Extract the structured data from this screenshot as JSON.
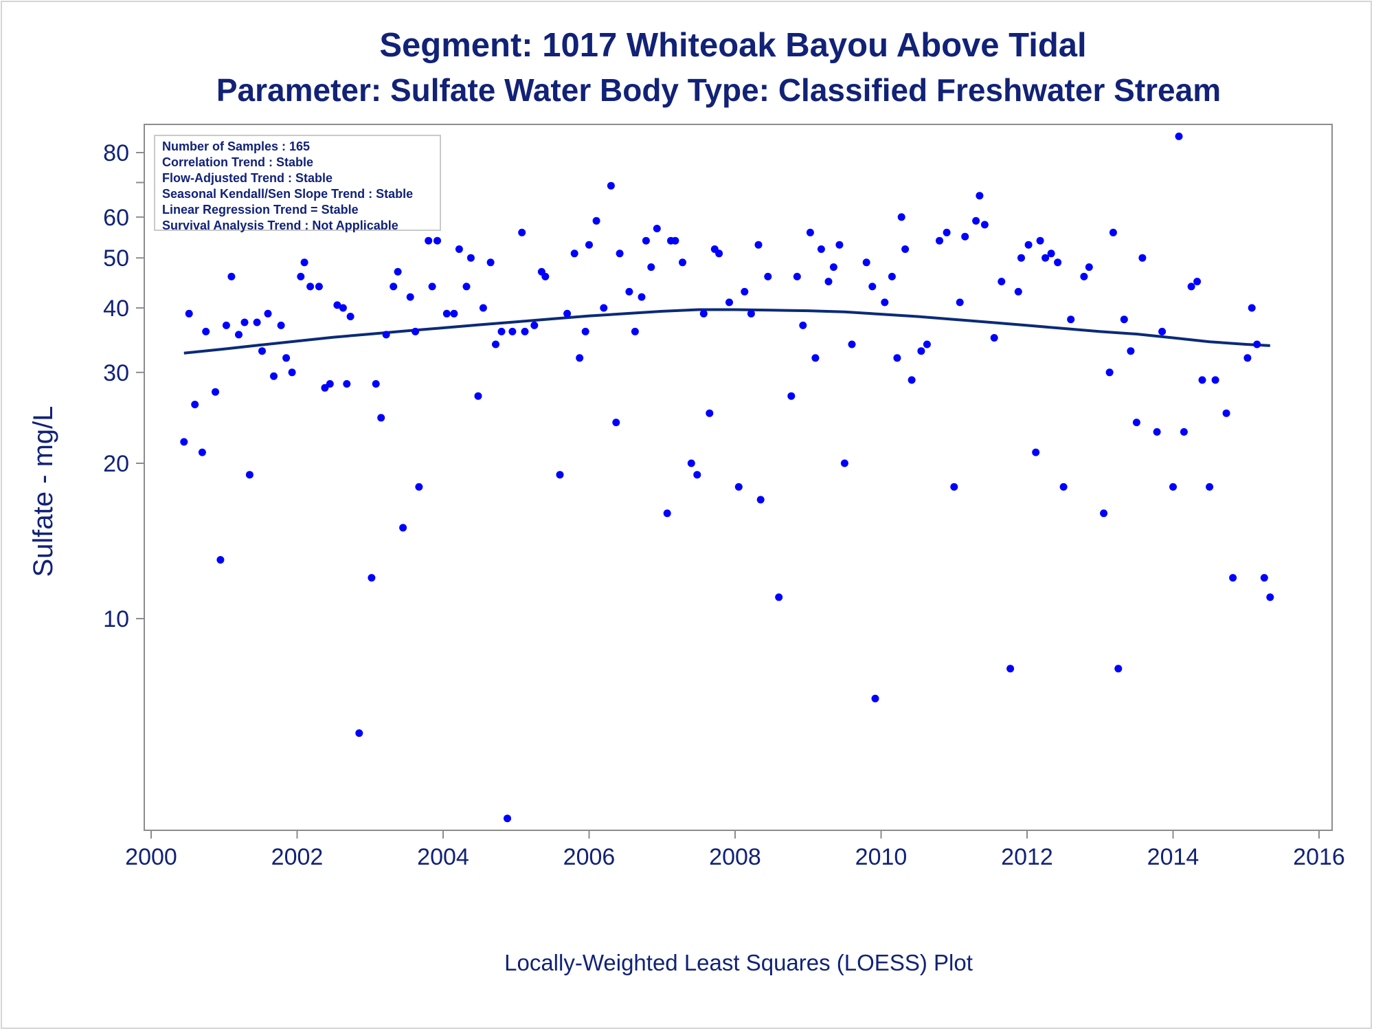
{
  "title_line1": "Segment: 1017  Whiteoak Bayou Above Tidal",
  "title_line2": "Parameter: Sulfate   Water Body Type: Classified Freshwater Stream",
  "stats_box": [
    "Number of Samples : 165",
    "Correlation Trend : Stable",
    "Flow-Adjusted Trend : Stable",
    "Seasonal Kendall/Sen Slope Trend : Stable",
    "Linear Regression Trend = Stable",
    "Survival Analysis Trend : Not Applicable"
  ],
  "footnote": "Locally-Weighted Least Squares (LOESS) Plot",
  "colors": {
    "text": "#112277",
    "points": "#0000ff",
    "loess": "#0b2a78",
    "axis": "#8c8c8c"
  },
  "chart_data": {
    "type": "scatter",
    "ylabel": "Sulfate - mg/L",
    "xlabel": "",
    "yscale": "log",
    "xlim": [
      2000,
      2016
    ],
    "ylim": [
      3.9,
      88
    ],
    "xticks": [
      2000,
      2002,
      2004,
      2006,
      2008,
      2010,
      2012,
      2014,
      2016
    ],
    "yticks": [
      10,
      20,
      30,
      40,
      50,
      60,
      80
    ],
    "yminor_ticks": [
      70
    ],
    "grid": false,
    "legend": "none",
    "series": [
      {
        "kind": "points",
        "points": [
          [
            2000.45,
            22
          ],
          [
            2000.52,
            39
          ],
          [
            2000.6,
            26
          ],
          [
            2000.7,
            21
          ],
          [
            2000.75,
            36
          ],
          [
            2000.88,
            27.5
          ],
          [
            2000.95,
            13
          ],
          [
            2001.03,
            37
          ],
          [
            2001.1,
            46
          ],
          [
            2001.2,
            35.5
          ],
          [
            2001.28,
            37.5
          ],
          [
            2001.35,
            19
          ],
          [
            2001.45,
            37.5
          ],
          [
            2001.52,
            33
          ],
          [
            2001.6,
            39
          ],
          [
            2001.68,
            29.5
          ],
          [
            2001.78,
            37
          ],
          [
            2001.85,
            32
          ],
          [
            2001.93,
            30
          ],
          [
            2002.05,
            46
          ],
          [
            2002.1,
            49
          ],
          [
            2002.18,
            44
          ],
          [
            2002.3,
            44
          ],
          [
            2002.38,
            28
          ],
          [
            2002.45,
            28.5
          ],
          [
            2002.55,
            40.5
          ],
          [
            2002.63,
            40
          ],
          [
            2002.68,
            28.5
          ],
          [
            2002.73,
            38.5
          ],
          [
            2002.85,
            6
          ],
          [
            2003.02,
            12
          ],
          [
            2003.08,
            28.5
          ],
          [
            2003.15,
            24.5
          ],
          [
            2003.22,
            35.5
          ],
          [
            2003.32,
            44
          ],
          [
            2003.38,
            47
          ],
          [
            2003.45,
            15
          ],
          [
            2003.55,
            42
          ],
          [
            2003.62,
            36
          ],
          [
            2003.67,
            18
          ],
          [
            2003.8,
            54
          ],
          [
            2003.85,
            44
          ],
          [
            2003.92,
            54
          ],
          [
            2004.05,
            39
          ],
          [
            2004.15,
            39
          ],
          [
            2004.22,
            52
          ],
          [
            2004.32,
            44
          ],
          [
            2004.38,
            50
          ],
          [
            2004.48,
            27
          ],
          [
            2004.55,
            40
          ],
          [
            2004.65,
            49
          ],
          [
            2004.72,
            34
          ],
          [
            2004.8,
            36
          ],
          [
            2004.88,
            4.1
          ],
          [
            2004.95,
            36
          ],
          [
            2005.08,
            56
          ],
          [
            2005.12,
            36
          ],
          [
            2005.25,
            37
          ],
          [
            2005.35,
            47
          ],
          [
            2005.4,
            46
          ],
          [
            2005.6,
            19
          ],
          [
            2005.7,
            39
          ],
          [
            2005.8,
            51
          ],
          [
            2005.87,
            32
          ],
          [
            2005.95,
            36
          ],
          [
            2006.0,
            53
          ],
          [
            2006.1,
            59
          ],
          [
            2006.2,
            40
          ],
          [
            2006.3,
            69
          ],
          [
            2006.37,
            24
          ],
          [
            2006.42,
            51
          ],
          [
            2006.55,
            43
          ],
          [
            2006.63,
            36
          ],
          [
            2006.72,
            42
          ],
          [
            2006.78,
            54
          ],
          [
            2006.85,
            48
          ],
          [
            2006.93,
            57
          ],
          [
            2007.07,
            16
          ],
          [
            2007.12,
            54
          ],
          [
            2007.18,
            54
          ],
          [
            2007.28,
            49
          ],
          [
            2007.4,
            20
          ],
          [
            2007.48,
            19
          ],
          [
            2007.57,
            39
          ],
          [
            2007.65,
            25
          ],
          [
            2007.72,
            52
          ],
          [
            2007.78,
            51
          ],
          [
            2007.92,
            41
          ],
          [
            2008.05,
            18
          ],
          [
            2008.13,
            43
          ],
          [
            2008.22,
            39
          ],
          [
            2008.32,
            53
          ],
          [
            2008.35,
            17
          ],
          [
            2008.45,
            46
          ],
          [
            2008.6,
            11
          ],
          [
            2008.77,
            27
          ],
          [
            2008.85,
            46
          ],
          [
            2008.93,
            37
          ],
          [
            2009.03,
            56
          ],
          [
            2009.1,
            32
          ],
          [
            2009.18,
            52
          ],
          [
            2009.28,
            45
          ],
          [
            2009.35,
            48
          ],
          [
            2009.43,
            53
          ],
          [
            2009.5,
            20
          ],
          [
            2009.6,
            34
          ],
          [
            2009.8,
            49
          ],
          [
            2009.88,
            44
          ],
          [
            2009.92,
            7
          ],
          [
            2010.05,
            41
          ],
          [
            2010.15,
            46
          ],
          [
            2010.22,
            32
          ],
          [
            2010.28,
            60
          ],
          [
            2010.33,
            52
          ],
          [
            2010.42,
            29
          ],
          [
            2010.55,
            33
          ],
          [
            2010.63,
            34
          ],
          [
            2010.8,
            54
          ],
          [
            2010.9,
            56
          ],
          [
            2011.0,
            18
          ],
          [
            2011.08,
            41
          ],
          [
            2011.15,
            55
          ],
          [
            2011.3,
            59
          ],
          [
            2011.35,
            66
          ],
          [
            2011.42,
            58
          ],
          [
            2011.55,
            35
          ],
          [
            2011.65,
            45
          ],
          [
            2011.77,
            8
          ],
          [
            2011.88,
            43
          ],
          [
            2011.92,
            50
          ],
          [
            2012.02,
            53
          ],
          [
            2012.12,
            21
          ],
          [
            2012.18,
            54
          ],
          [
            2012.25,
            50
          ],
          [
            2012.33,
            51
          ],
          [
            2012.42,
            49
          ],
          [
            2012.5,
            18
          ],
          [
            2012.6,
            38
          ],
          [
            2012.78,
            46
          ],
          [
            2012.85,
            48
          ],
          [
            2013.05,
            16
          ],
          [
            2013.13,
            30
          ],
          [
            2013.18,
            56
          ],
          [
            2013.25,
            8
          ],
          [
            2013.33,
            38
          ],
          [
            2013.42,
            33
          ],
          [
            2013.5,
            24
          ],
          [
            2013.58,
            50
          ],
          [
            2013.78,
            23
          ],
          [
            2013.85,
            36
          ],
          [
            2014.0,
            18
          ],
          [
            2014.08,
            86
          ],
          [
            2014.15,
            23
          ],
          [
            2014.25,
            44
          ],
          [
            2014.33,
            45
          ],
          [
            2014.4,
            29
          ],
          [
            2014.5,
            18
          ],
          [
            2014.58,
            29
          ],
          [
            2014.73,
            25
          ],
          [
            2014.82,
            12
          ],
          [
            2015.02,
            32
          ],
          [
            2015.08,
            40
          ],
          [
            2015.15,
            34
          ],
          [
            2015.25,
            12
          ],
          [
            2015.33,
            11
          ]
        ]
      },
      {
        "kind": "loess",
        "points": [
          [
            2000.45,
            32.7
          ],
          [
            2001.0,
            33.3
          ],
          [
            2001.5,
            33.9
          ],
          [
            2002.0,
            34.5
          ],
          [
            2002.5,
            35.1
          ],
          [
            2003.0,
            35.6
          ],
          [
            2003.5,
            36.1
          ],
          [
            2004.0,
            36.6
          ],
          [
            2004.5,
            37.1
          ],
          [
            2005.0,
            37.6
          ],
          [
            2005.5,
            38.1
          ],
          [
            2006.0,
            38.6
          ],
          [
            2006.5,
            39.0
          ],
          [
            2007.0,
            39.4
          ],
          [
            2007.5,
            39.7
          ],
          [
            2008.0,
            39.7
          ],
          [
            2008.5,
            39.6
          ],
          [
            2009.0,
            39.5
          ],
          [
            2009.5,
            39.3
          ],
          [
            2010.0,
            38.9
          ],
          [
            2010.5,
            38.5
          ],
          [
            2011.0,
            38.0
          ],
          [
            2011.5,
            37.5
          ],
          [
            2012.0,
            37.0
          ],
          [
            2012.5,
            36.5
          ],
          [
            2013.0,
            36.0
          ],
          [
            2013.5,
            35.6
          ],
          [
            2014.0,
            35.0
          ],
          [
            2014.5,
            34.4
          ],
          [
            2015.0,
            34.0
          ],
          [
            2015.33,
            33.8
          ]
        ]
      }
    ]
  }
}
